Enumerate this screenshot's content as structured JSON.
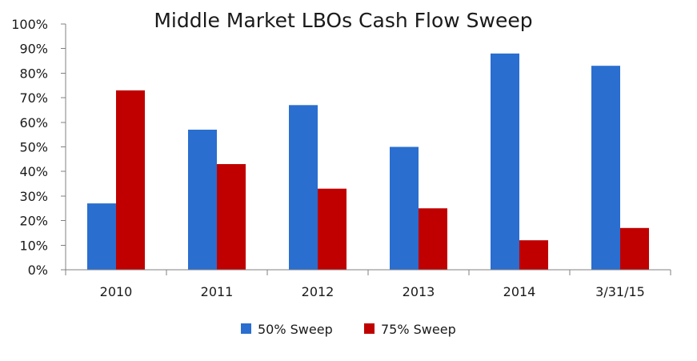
{
  "chart_data": {
    "type": "bar",
    "title": "Middle Market LBOs Cash Flow Sweep",
    "xlabel": "",
    "ylabel": "",
    "categories": [
      "2010",
      "2011",
      "2012",
      "2013",
      "2014",
      "3/31/15"
    ],
    "series": [
      {
        "name": "50% Sweep",
        "color": "#2a6ecf",
        "values": [
          27,
          57,
          67,
          50,
          88,
          83
        ]
      },
      {
        "name": "75% Sweep",
        "color": "#c00000",
        "values": [
          73,
          43,
          33,
          25,
          12,
          17
        ]
      }
    ],
    "ylim": [
      0,
      100
    ],
    "yticks": [
      0,
      10,
      20,
      30,
      40,
      50,
      60,
      70,
      80,
      90,
      100
    ],
    "ytick_labels": [
      "0%",
      "10%",
      "20%",
      "30%",
      "40%",
      "50%",
      "60%",
      "70%",
      "80%",
      "90%",
      "100%"
    ],
    "grid": false,
    "legend_position": "bottom-center"
  }
}
